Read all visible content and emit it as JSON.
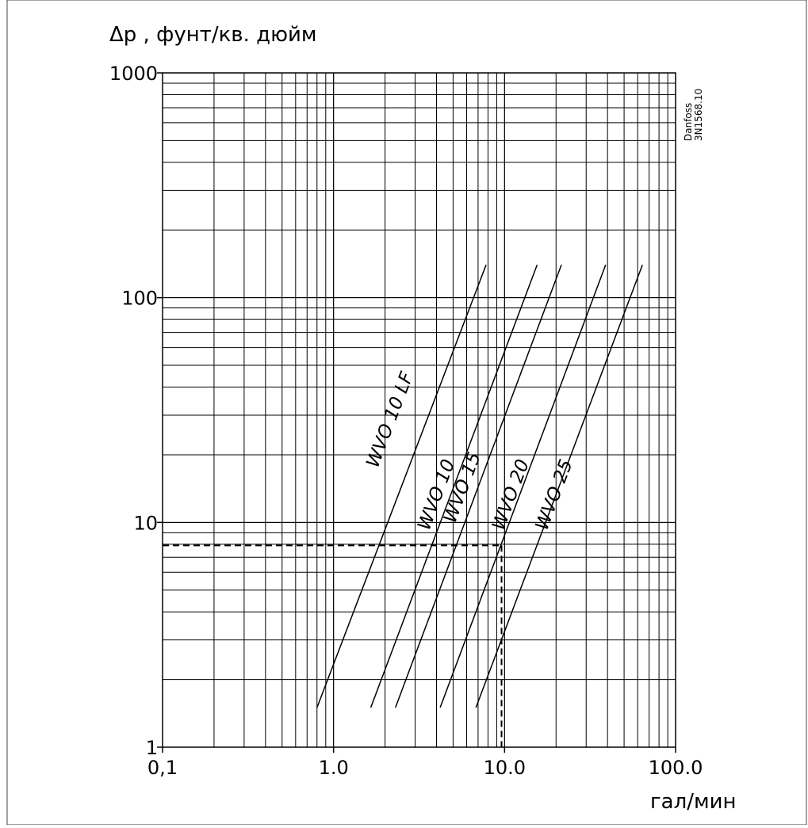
{
  "chart_data": {
    "type": "line",
    "title": "",
    "ylabel": "Δp , фунт/кв. дюйм",
    "xlabel": "гал/мин",
    "xscale": "log",
    "yscale": "log",
    "xlim": [
      0.1,
      100
    ],
    "ylim": [
      1,
      1000
    ],
    "grid": true,
    "x_tick_labels": [
      "0,1",
      "1.0",
      "10.0",
      "100.0"
    ],
    "x_tick_values": [
      0.1,
      1,
      10,
      100
    ],
    "y_tick_labels": [
      "1",
      "10",
      "100",
      "1000"
    ],
    "y_tick_values": [
      1,
      10,
      100,
      1000
    ],
    "series": [
      {
        "name": "WVO 10 LF",
        "label_at": [
          2.3,
          28
        ],
        "x": [
          0.8,
          7.8
        ],
        "y": [
          1.5,
          140
        ]
      },
      {
        "name": "WVO 10",
        "label_at": [
          4.3,
          13
        ],
        "x": [
          1.65,
          15.5
        ],
        "y": [
          1.5,
          140
        ]
      },
      {
        "name": "WVO 15",
        "label_at": [
          6.1,
          14
        ],
        "x": [
          2.3,
          21.5
        ],
        "y": [
          1.5,
          140
        ]
      },
      {
        "name": "WVO 20",
        "label_at": [
          11.7,
          13
        ],
        "x": [
          4.2,
          39
        ],
        "y": [
          1.5,
          140
        ]
      },
      {
        "name": "WVO 25",
        "label_at": [
          21,
          13
        ],
        "x": [
          6.8,
          64
        ],
        "y": [
          1.5,
          140
        ]
      }
    ],
    "reference_point": {
      "x": 9.6,
      "y": 7.9,
      "style": "dashed"
    },
    "watermark_text": [
      "Danfoss",
      "3N1568.10"
    ]
  }
}
